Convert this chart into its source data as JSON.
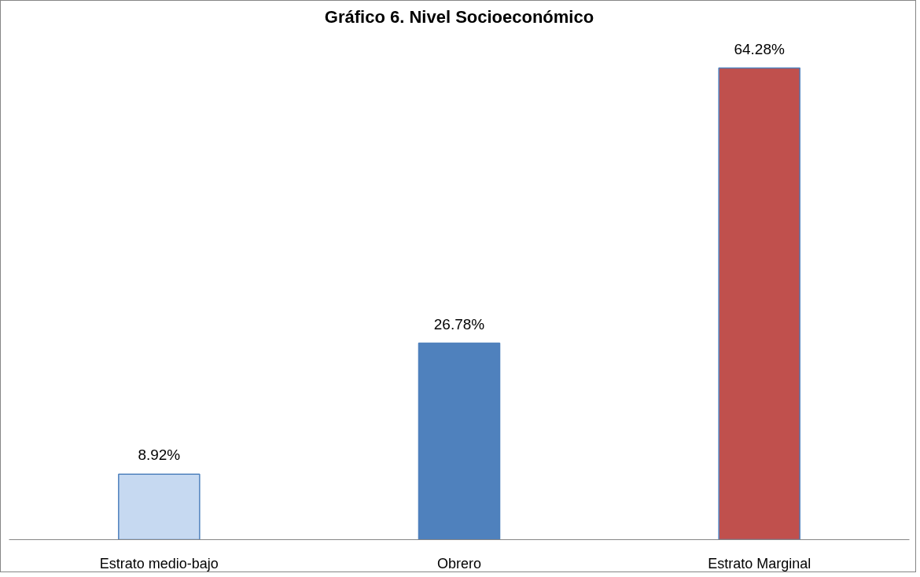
{
  "chart_data": {
    "type": "bar",
    "title": "Gráfico 6. Nivel Socioeconómico",
    "categories": [
      "Estrato medio-bajo",
      "Obrero",
      "Estrato Marginal"
    ],
    "values": [
      8.92,
      26.78,
      64.28
    ],
    "colors": [
      "#c6d9f1",
      "#4f81bd",
      "#c0504d"
    ],
    "value_labels": [
      "8.92%",
      "26.78%",
      "64.28%"
    ]
  }
}
